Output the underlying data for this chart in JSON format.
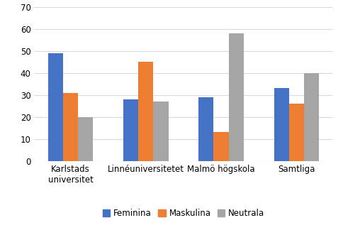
{
  "categories": [
    "Karlstads\nuniversitet",
    "Linnéuniversitetet",
    "Malmö högskola",
    "Samtliga"
  ],
  "series": {
    "Feminina": [
      49,
      28,
      29,
      33
    ],
    "Maskulina": [
      31,
      45,
      13,
      26
    ],
    "Neutrala": [
      20,
      27,
      58,
      40
    ]
  },
  "colors": {
    "Feminina": "#4472C4",
    "Maskulina": "#ED7D31",
    "Neutrala": "#A5A5A5"
  },
  "ylim": [
    0,
    70
  ],
  "yticks": [
    0,
    10,
    20,
    30,
    40,
    50,
    60,
    70
  ],
  "legend_labels": [
    "Feminina",
    "Maskulina",
    "Neutrala"
  ],
  "bar_width": 0.2,
  "background_color": "#ffffff",
  "grid_color": "#d9d9d9",
  "tick_fontsize": 8.5,
  "legend_fontsize": 8.5
}
